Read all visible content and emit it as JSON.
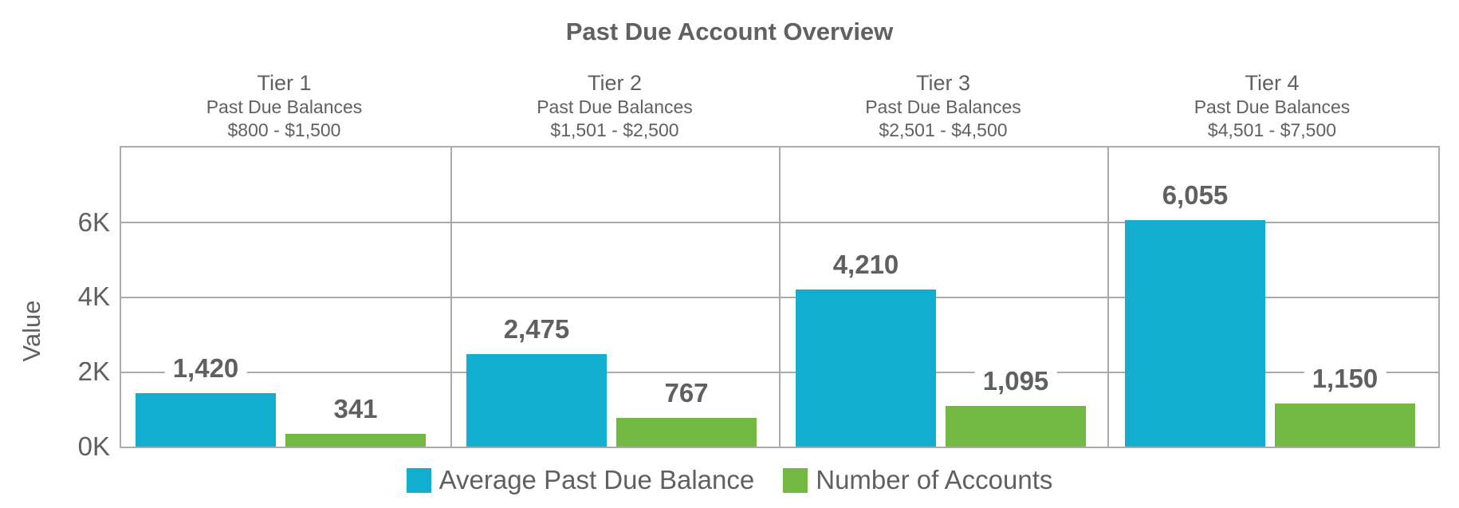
{
  "chart_data": {
    "type": "bar",
    "title": "Past Due Account Overview",
    "xlabel": "",
    "ylabel": "Value",
    "ylim": [
      0,
      8000
    ],
    "yticks": [
      0,
      2000,
      4000,
      6000
    ],
    "ytick_labels": [
      "0K",
      "2K",
      "4K",
      "6K"
    ],
    "grid": true,
    "legend_position": "bottom",
    "categories": [
      {
        "name": "Tier 1",
        "subtitle": "Past Due Balances",
        "range": "$800 - $1,500"
      },
      {
        "name": "Tier 2",
        "subtitle": "Past Due Balances",
        "range": "$1,501 - $2,500"
      },
      {
        "name": "Tier 3",
        "subtitle": "Past Due Balances",
        "range": "$2,501 - $4,500"
      },
      {
        "name": "Tier 4",
        "subtitle": "Past Due Balances",
        "range": "$4,501 - $7,500"
      }
    ],
    "series": [
      {
        "name": "Average Past Due Balance",
        "color": "#12aecf",
        "values": [
          1420,
          2475,
          4210,
          6055
        ],
        "labels": [
          "1,420",
          "2,475",
          "4,210",
          "6,055"
        ]
      },
      {
        "name": "Number of Accounts",
        "color": "#72b944",
        "values": [
          341,
          767,
          1095,
          1150
        ],
        "labels": [
          "341",
          "767",
          "1,095",
          "1,150"
        ]
      }
    ]
  },
  "colors": {
    "text": "#5f6062",
    "grid": "#a7abad",
    "series_blue": "#12aecf",
    "series_green": "#72b944"
  }
}
